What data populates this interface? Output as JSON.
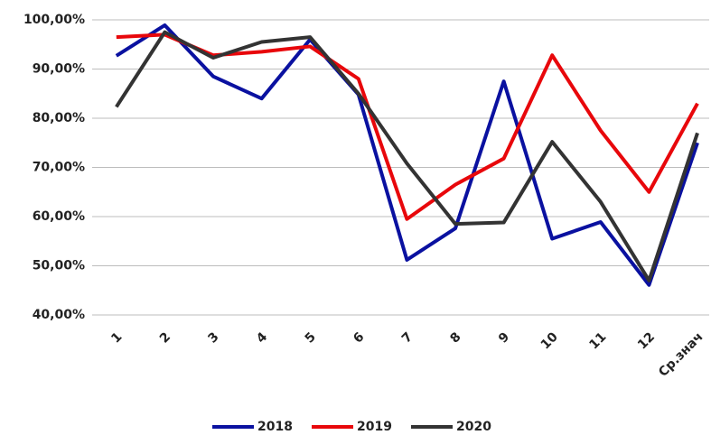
{
  "chart_data": {
    "type": "line",
    "categories": [
      "1",
      "2",
      "3",
      "4",
      "5",
      "6",
      "7",
      "8",
      "9",
      "10",
      "11",
      "12",
      "Ср.знач"
    ],
    "series": [
      {
        "name": "2018",
        "color": "#0a11a0",
        "values": [
          92.7,
          98.9,
          88.5,
          84.0,
          96.0,
          84.8,
          51.2,
          57.6,
          87.5,
          55.5,
          58.9,
          46.1,
          75.0
        ]
      },
      {
        "name": "2019",
        "color": "#e8070b",
        "values": [
          96.5,
          97.0,
          92.8,
          93.5,
          94.6,
          88.0,
          59.5,
          66.5,
          71.8,
          92.8,
          77.5,
          65.0,
          83.0
        ]
      },
      {
        "name": "2020",
        "color": "#333333",
        "values": [
          82.3,
          97.5,
          92.3,
          95.5,
          96.5,
          85.0,
          70.8,
          58.5,
          58.8,
          75.2,
          63.0,
          47.0,
          77.0
        ]
      }
    ],
    "ylim": [
      40,
      100
    ],
    "yticks": [
      {
        "value": 40,
        "label": "40,00%"
      },
      {
        "value": 50,
        "label": "50,00%"
      },
      {
        "value": 60,
        "label": "60,00%"
      },
      {
        "value": 70,
        "label": "70,00%"
      },
      {
        "value": 80,
        "label": "80,00%"
      },
      {
        "value": 90,
        "label": "90,00%"
      },
      {
        "value": 100,
        "label": "100,00%"
      }
    ],
    "grid": true,
    "legend": "bottom"
  }
}
